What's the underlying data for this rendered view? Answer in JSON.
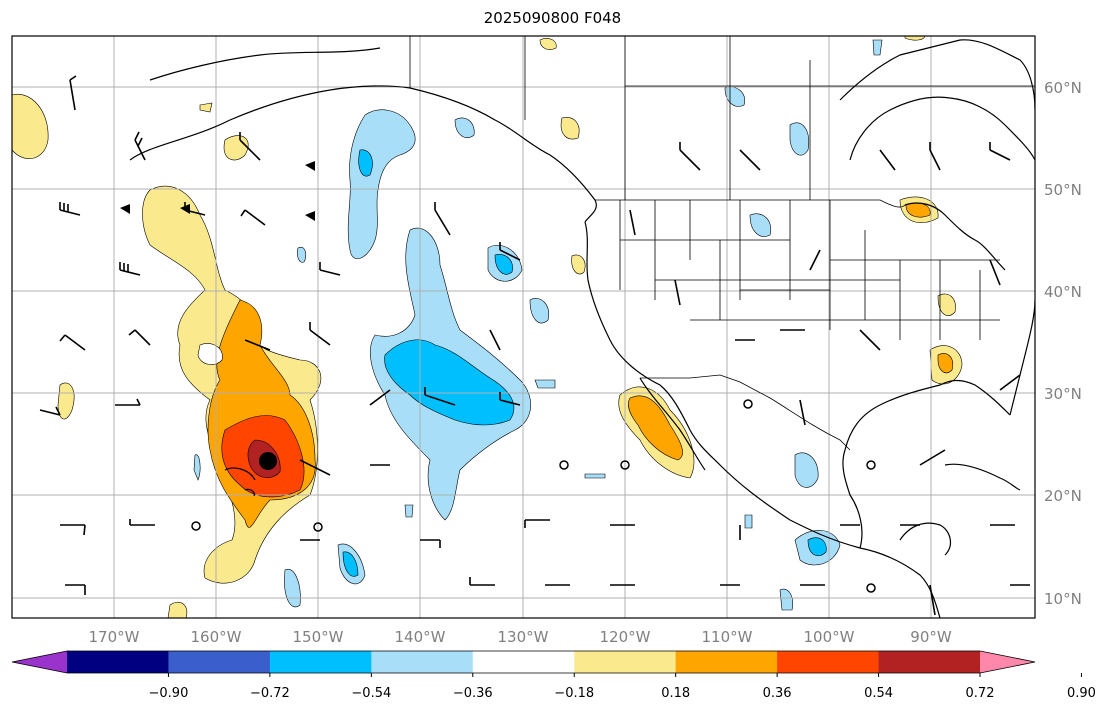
{
  "title": "2025090800 F048",
  "map": {
    "lat_labels": [
      "60°N",
      "50°N",
      "40°N",
      "30°N",
      "20°N",
      "10°N"
    ],
    "lon_labels": [
      "170°W",
      "160°W",
      "150°W",
      "140°W",
      "130°W",
      "120°W",
      "110°W",
      "100°W",
      "90°W"
    ],
    "gridlines": true,
    "storm_center_marker": "black-dot"
  },
  "colorbar": {
    "orientation": "horizontal",
    "extend": "both",
    "colors": [
      "#9933cc",
      "#000080",
      "#3a5fcd",
      "#00bfff",
      "#a9def9",
      "#ffffff",
      "#fbe98d",
      "#ffa500",
      "#ff4500",
      "#b22222",
      "#ff88aa"
    ],
    "tick_labels": [
      "−0.90",
      "−0.72",
      "−0.54",
      "−0.36",
      "−0.18",
      "0.18",
      "0.36",
      "0.54",
      "0.72",
      "0.90"
    ]
  }
}
